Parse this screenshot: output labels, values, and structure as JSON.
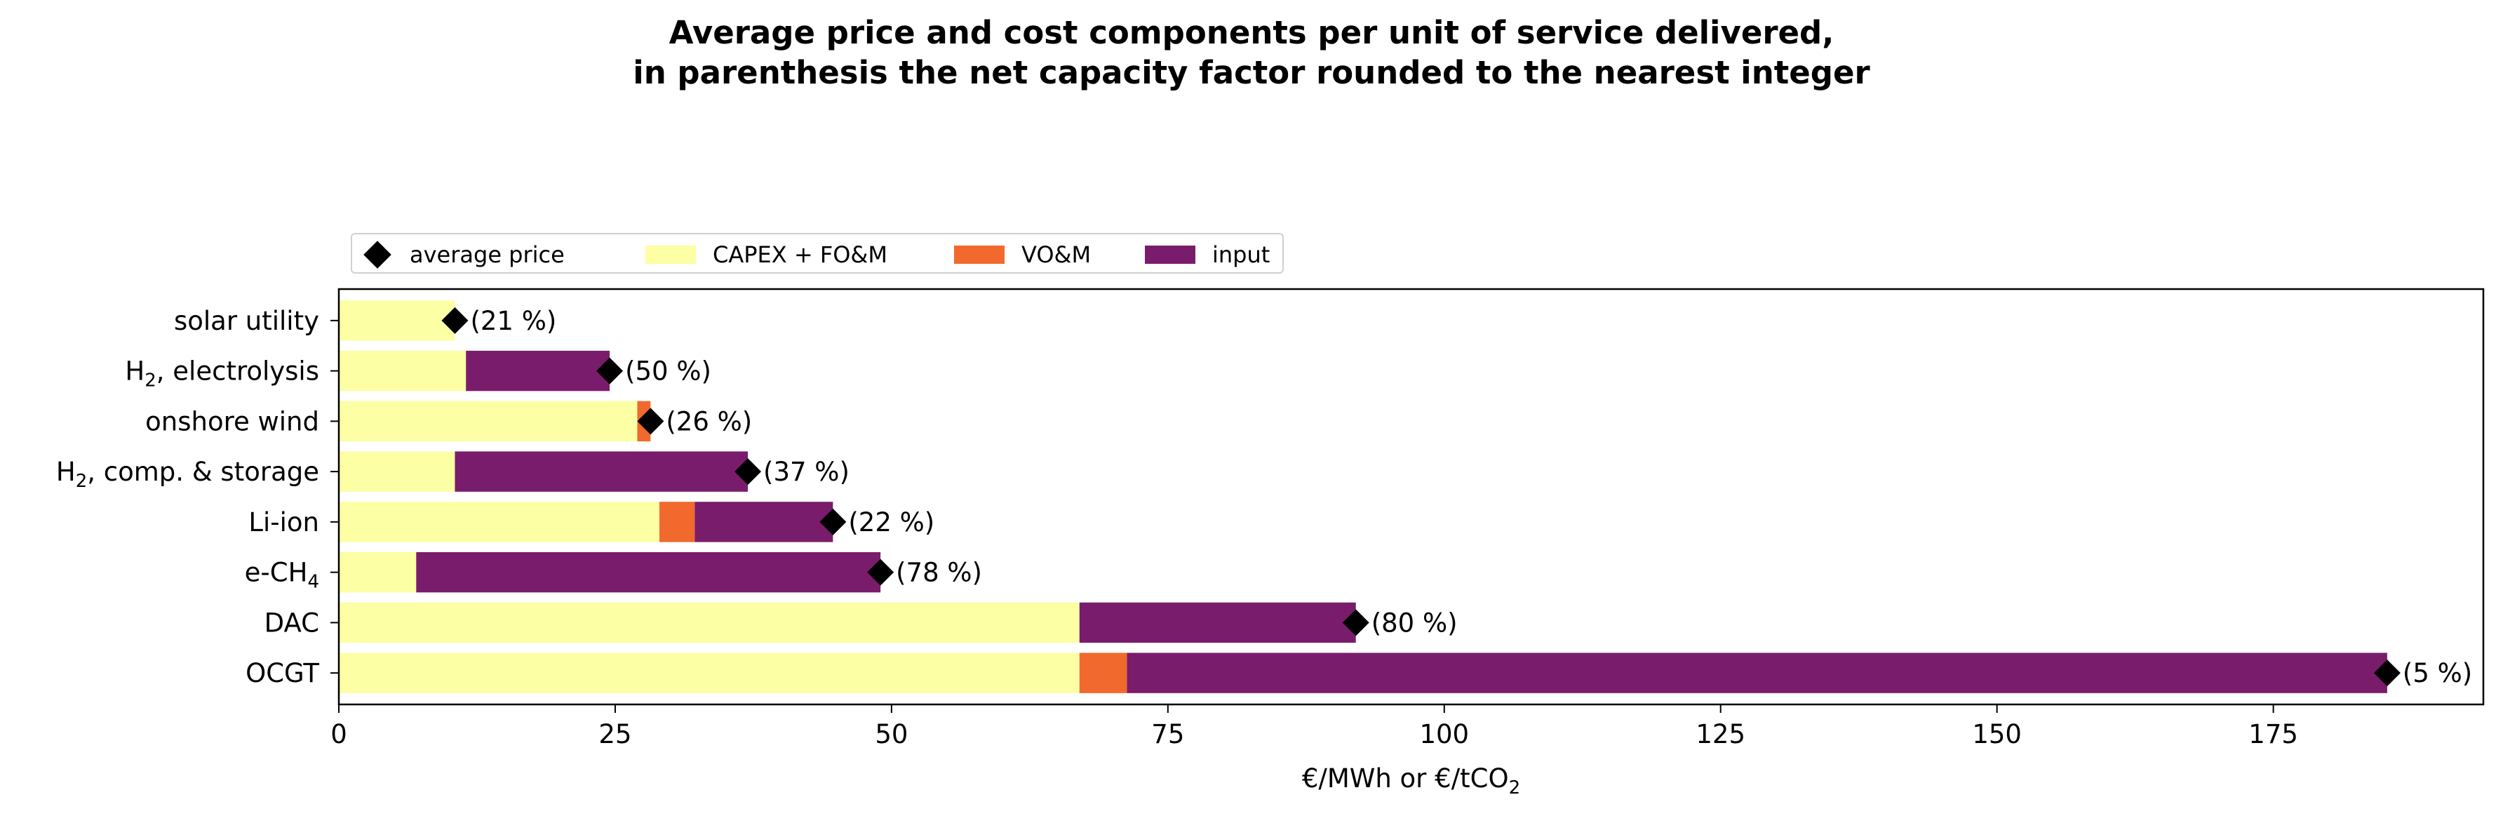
{
  "chart_data": {
    "type": "bar",
    "orientation": "horizontal",
    "stacked": true,
    "title": "Average price and cost components per unit of service delivered,",
    "title_line2": "in parenthesis the net capacity factor rounded to the nearest integer",
    "xlabel": "€/MWh or €/tCO",
    "xlabel_subscript": "2",
    "ylabel": "",
    "xlim": [
      0,
      194
    ],
    "xticks": [
      0,
      25,
      50,
      75,
      100,
      125,
      150,
      175
    ],
    "grid": false,
    "legend_position": "top-left, above plot",
    "categories": [
      {
        "label": "solar utility",
        "sub": "",
        "suffix": ""
      },
      {
        "label": "H",
        "sub": "2",
        "suffix": ", electrolysis"
      },
      {
        "label": "onshore wind",
        "sub": "",
        "suffix": ""
      },
      {
        "label": "H",
        "sub": "2",
        "suffix": ", comp. & storage"
      },
      {
        "label": "Li-ion",
        "sub": "",
        "suffix": ""
      },
      {
        "label": "e-CH",
        "sub": "4",
        "suffix": ""
      },
      {
        "label": "DAC",
        "sub": "",
        "suffix": ""
      },
      {
        "label": "OCGT",
        "sub": "",
        "suffix": ""
      }
    ],
    "series": [
      {
        "name": "CAPEX + FO&M",
        "color": "#fcffa4",
        "values": [
          10.5,
          11.5,
          27.0,
          10.5,
          29.0,
          7.0,
          67.0,
          67.0
        ]
      },
      {
        "name": "VO&M",
        "color": "#f1692c",
        "values": [
          0.0,
          0.0,
          1.2,
          0.0,
          3.2,
          0.0,
          0.0,
          4.3
        ]
      },
      {
        "name": "input",
        "color": "#7a1c6c",
        "values": [
          0.0,
          13.0,
          0.0,
          26.5,
          12.5,
          42.0,
          25.0,
          114.0
        ]
      }
    ],
    "average_price": {
      "name": "average price",
      "color": "#000000",
      "values": [
        10.5,
        24.5,
        28.2,
        37.0,
        44.7,
        49.0,
        92.0,
        185.3
      ]
    },
    "annotations": [
      "(21 %)",
      "(50 %)",
      "(26 %)",
      "(37 %)",
      "(22 %)",
      "(78 %)",
      "(80 %)",
      "(5 %)"
    ]
  }
}
